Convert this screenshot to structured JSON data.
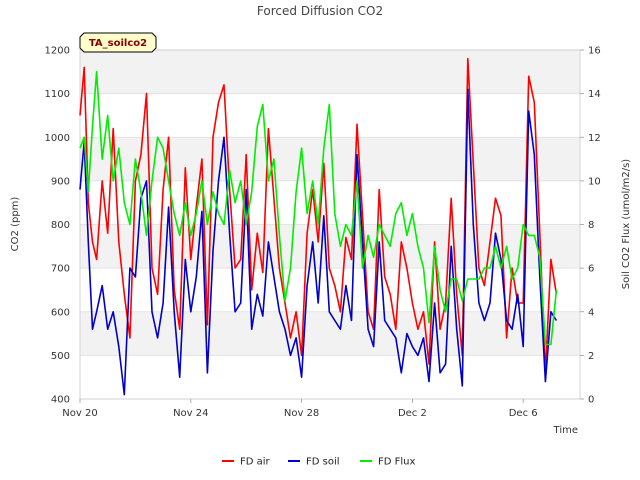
{
  "chart_data": {
    "type": "line",
    "title": "Forced Diffusion CO2",
    "tag_label": "TA_soilco2",
    "xlabel": "Time",
    "ylabel_left": "CO2 (ppm)",
    "ylabel_right": "Soil CO2 Flux (umol/m2/s)",
    "xlim": [
      0,
      21.8
    ],
    "x_ticks": [
      {
        "value": 0,
        "label": "Nov 20"
      },
      {
        "value": 4,
        "label": "Nov 24"
      },
      {
        "value": 8,
        "label": "Nov 28"
      },
      {
        "value": 12,
        "label": "Dec 2"
      },
      {
        "value": 16,
        "label": "Dec 6"
      }
    ],
    "ylim_left": [
      400,
      1200
    ],
    "y_ticks_left": [
      400,
      500,
      600,
      700,
      800,
      900,
      1000,
      1100,
      1200
    ],
    "ylim_right": [
      0,
      16
    ],
    "y_ticks_right": [
      0,
      2,
      4,
      6,
      8,
      10,
      12,
      14,
      16
    ],
    "grid": true,
    "legend_position": "bottom",
    "x_unit": "days since Nov 20",
    "series": [
      {
        "name": "FD air",
        "axis": "left",
        "color": "#ff0000",
        "x": [
          0.0,
          0.15,
          0.3,
          0.45,
          0.6,
          0.8,
          1.0,
          1.2,
          1.4,
          1.6,
          1.8,
          2.0,
          2.2,
          2.4,
          2.6,
          2.8,
          3.0,
          3.2,
          3.4,
          3.6,
          3.8,
          4.0,
          4.2,
          4.4,
          4.6,
          4.8,
          5.0,
          5.2,
          5.4,
          5.6,
          5.8,
          6.0,
          6.2,
          6.4,
          6.6,
          6.8,
          7.0,
          7.2,
          7.4,
          7.6,
          7.8,
          8.0,
          8.2,
          8.4,
          8.6,
          8.8,
          9.0,
          9.2,
          9.4,
          9.6,
          9.8,
          10.0,
          10.2,
          10.4,
          10.6,
          10.8,
          11.0,
          11.2,
          11.4,
          11.6,
          11.8,
          12.0,
          12.2,
          12.4,
          12.6,
          12.8,
          13.0,
          13.2,
          13.4,
          13.6,
          13.8,
          14.0,
          14.2,
          14.4,
          14.6,
          14.8,
          15.0,
          15.2,
          15.4,
          15.6,
          15.8,
          16.0,
          16.2,
          16.4,
          16.6,
          16.8,
          17.0,
          17.2
        ],
        "y": [
          1050,
          1160,
          850,
          760,
          720,
          900,
          780,
          1020,
          760,
          640,
          540,
          900,
          960,
          1100,
          700,
          640,
          880,
          1000,
          650,
          560,
          930,
          720,
          840,
          950,
          570,
          1000,
          1080,
          1120,
          880,
          700,
          720,
          960,
          650,
          780,
          690,
          1020,
          860,
          700,
          620,
          540,
          600,
          500,
          780,
          880,
          760,
          940,
          700,
          660,
          600,
          770,
          720,
          1030,
          820,
          600,
          560,
          880,
          680,
          640,
          560,
          760,
          700,
          620,
          560,
          600,
          480,
          760,
          560,
          620,
          860,
          640,
          500,
          1180,
          940,
          700,
          660,
          760,
          860,
          820,
          540,
          700,
          620,
          620,
          1140,
          1080,
          780,
          460,
          720,
          640
        ],
        "values": [
          1050,
          1160,
          850,
          760,
          720,
          900,
          780,
          1020,
          760,
          640,
          540,
          900,
          960,
          1100,
          700,
          640,
          880,
          1000,
          650,
          560,
          930,
          720,
          840,
          950,
          570,
          1000,
          1080,
          1120,
          880,
          700,
          720,
          960,
          650,
          780,
          690,
          1020,
          860,
          700,
          620,
          540,
          600,
          500,
          780,
          880,
          760,
          940,
          700,
          660,
          600,
          770,
          720,
          1030,
          820,
          600,
          560,
          880,
          680,
          640,
          560,
          760,
          700,
          620,
          560,
          600,
          480,
          760,
          560,
          620,
          860,
          640,
          500,
          1180,
          940,
          700,
          660,
          760,
          860,
          820,
          540,
          700,
          620,
          620,
          1140,
          1080,
          780,
          460,
          720,
          640
        ]
      },
      {
        "name": "FD soil",
        "axis": "left",
        "color": "#0000cc",
        "x": [
          0.0,
          0.15,
          0.3,
          0.45,
          0.6,
          0.8,
          1.0,
          1.2,
          1.4,
          1.6,
          1.8,
          2.0,
          2.2,
          2.4,
          2.6,
          2.8,
          3.0,
          3.2,
          3.4,
          3.6,
          3.8,
          4.0,
          4.2,
          4.4,
          4.6,
          4.8,
          5.0,
          5.2,
          5.4,
          5.6,
          5.8,
          6.0,
          6.2,
          6.4,
          6.6,
          6.8,
          7.0,
          7.2,
          7.4,
          7.6,
          7.8,
          8.0,
          8.2,
          8.4,
          8.6,
          8.8,
          9.0,
          9.2,
          9.4,
          9.6,
          9.8,
          10.0,
          10.2,
          10.4,
          10.6,
          10.8,
          11.0,
          11.2,
          11.4,
          11.6,
          11.8,
          12.0,
          12.2,
          12.4,
          12.6,
          12.8,
          13.0,
          13.2,
          13.4,
          13.6,
          13.8,
          14.0,
          14.2,
          14.4,
          14.6,
          14.8,
          15.0,
          15.2,
          15.4,
          15.6,
          15.8,
          16.0,
          16.2,
          16.4,
          16.6,
          16.8,
          17.0,
          17.2
        ],
        "y": [
          880,
          990,
          760,
          560,
          600,
          660,
          560,
          600,
          520,
          410,
          700,
          680,
          860,
          900,
          600,
          540,
          620,
          840,
          600,
          450,
          720,
          600,
          680,
          830,
          460,
          740,
          900,
          1000,
          780,
          600,
          620,
          880,
          560,
          640,
          590,
          760,
          680,
          600,
          560,
          500,
          540,
          450,
          660,
          760,
          620,
          820,
          600,
          580,
          560,
          660,
          580,
          960,
          760,
          560,
          520,
          760,
          580,
          560,
          540,
          460,
          550,
          520,
          500,
          540,
          440,
          620,
          460,
          480,
          750,
          560,
          430,
          1110,
          800,
          620,
          580,
          620,
          780,
          720,
          580,
          560,
          640,
          520,
          1060,
          960,
          680,
          440,
          600,
          580
        ],
        "values": [
          880,
          990,
          760,
          560,
          600,
          660,
          560,
          600,
          520,
          410,
          700,
          680,
          860,
          900,
          600,
          540,
          620,
          840,
          600,
          450,
          720,
          600,
          680,
          830,
          460,
          740,
          900,
          1000,
          780,
          600,
          620,
          880,
          560,
          640,
          590,
          760,
          680,
          600,
          560,
          500,
          540,
          450,
          660,
          760,
          620,
          820,
          600,
          580,
          560,
          660,
          580,
          960,
          760,
          560,
          520,
          760,
          580,
          560,
          540,
          460,
          550,
          520,
          500,
          540,
          440,
          620,
          460,
          480,
          750,
          560,
          430,
          1110,
          800,
          620,
          580,
          620,
          780,
          720,
          580,
          560,
          640,
          520,
          1060,
          960,
          680,
          440,
          600,
          580
        ]
      },
      {
        "name": "FD Flux",
        "axis": "right",
        "color": "#00ee00",
        "x": [
          0.0,
          0.15,
          0.3,
          0.45,
          0.6,
          0.8,
          1.0,
          1.2,
          1.4,
          1.6,
          1.8,
          2.0,
          2.2,
          2.4,
          2.6,
          2.8,
          3.0,
          3.2,
          3.4,
          3.6,
          3.8,
          4.0,
          4.2,
          4.4,
          4.6,
          4.8,
          5.0,
          5.2,
          5.4,
          5.6,
          5.8,
          6.0,
          6.2,
          6.4,
          6.6,
          6.8,
          7.0,
          7.2,
          7.4,
          7.6,
          7.8,
          8.0,
          8.2,
          8.4,
          8.6,
          8.8,
          9.0,
          9.2,
          9.4,
          9.6,
          9.8,
          10.0,
          10.2,
          10.4,
          10.6,
          10.8,
          11.0,
          11.2,
          11.4,
          11.6,
          11.8,
          12.0,
          12.2,
          12.4,
          12.6,
          12.8,
          13.0,
          13.2,
          13.4,
          13.6,
          13.8,
          14.0,
          14.2,
          14.4,
          14.6,
          14.8,
          15.0,
          15.2,
          15.4,
          15.6,
          15.8,
          16.0,
          16.2,
          16.4,
          16.6,
          16.8,
          17.0,
          17.2
        ],
        "y": [
          11.5,
          12,
          9.5,
          12.5,
          15,
          11,
          13,
          10,
          11.5,
          9,
          8,
          11,
          9.5,
          7.5,
          10,
          12,
          11.5,
          10,
          8.5,
          7.5,
          9,
          7.5,
          8.5,
          10,
          8,
          9.5,
          8.5,
          8,
          10.5,
          9,
          10,
          8,
          9.5,
          12.5,
          13.5,
          10,
          11,
          7.5,
          4.5,
          6,
          9.5,
          11.5,
          8.5,
          10,
          8,
          11.5,
          13.5,
          8.5,
          7,
          8,
          7.5,
          10,
          6,
          7.5,
          6.5,
          8,
          7.5,
          7,
          8.5,
          9,
          7.5,
          8.5,
          7,
          6,
          3.5,
          7,
          5,
          4,
          5.5,
          5.5,
          4.5,
          5.5,
          5.5,
          5.5,
          6,
          6,
          7,
          6,
          7,
          5.5,
          6,
          8,
          7.5,
          7.5,
          6.5,
          2.5,
          2.5,
          5
        ],
        "values": [
          11.5,
          12,
          9.5,
          12.5,
          15,
          11,
          13,
          10,
          11.5,
          9,
          8,
          11,
          9.5,
          7.5,
          10,
          12,
          11.5,
          10,
          8.5,
          7.5,
          9,
          7.5,
          8.5,
          10,
          8,
          9.5,
          8.5,
          8,
          10.5,
          9,
          10,
          8,
          9.5,
          12.5,
          13.5,
          10,
          11,
          7.5,
          4.5,
          6,
          9.5,
          11.5,
          8.5,
          10,
          8,
          11.5,
          13.5,
          8.5,
          7,
          8,
          7.5,
          10,
          6,
          7.5,
          6.5,
          8,
          7.5,
          7,
          8.5,
          9,
          7.5,
          8.5,
          7,
          6,
          3.5,
          7,
          5,
          4,
          5.5,
          5.5,
          4.5,
          5.5,
          5.5,
          5.5,
          6,
          6,
          7,
          6,
          7,
          5.5,
          6,
          8,
          7.5,
          7.5,
          6.5,
          2.5,
          2.5,
          5
        ]
      }
    ]
  }
}
